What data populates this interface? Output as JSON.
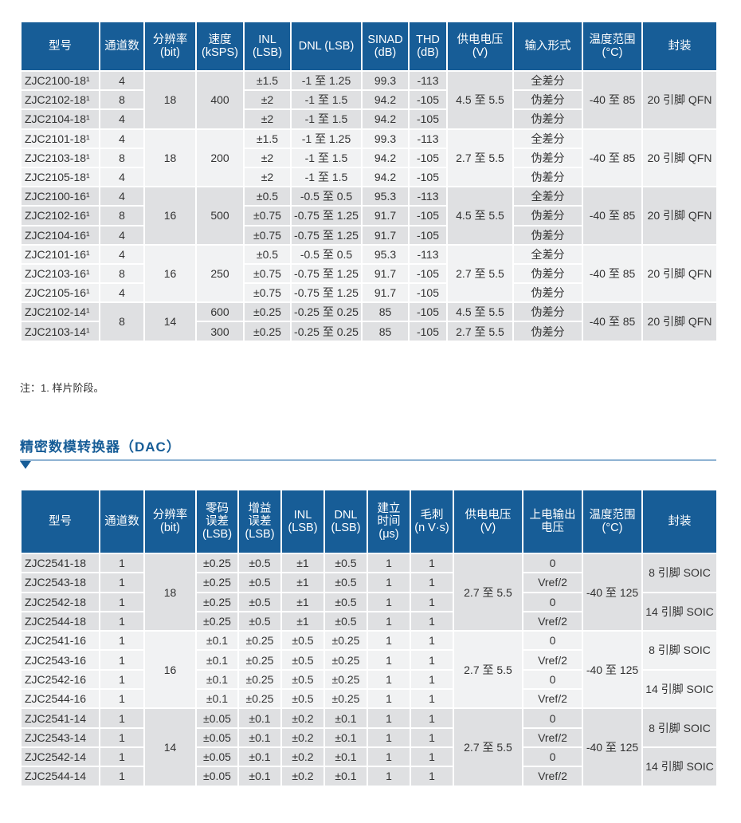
{
  "adc_table": {
    "headers": [
      "型号",
      "通道数",
      "分辨率\n(bit)",
      "速度\n(kSPS)",
      "INL\n(LSB)",
      "DNL (LSB)",
      "SINAD\n(dB)",
      "THD\n(dB)",
      "供电电压\n(V)",
      "输入形式",
      "温度范围\n(°C)",
      "封装"
    ],
    "groups": [
      [
        [
          "ZJC2100-18¹",
          "4",
          "18",
          "400",
          "±1.5",
          "-1 至 1.25",
          "99.3",
          "-113",
          "4.5 至 5.5",
          "全差分",
          "-40 至 85",
          "20 引脚 QFN"
        ],
        [
          "ZJC2102-18¹",
          "8",
          null,
          null,
          "±2",
          "-1 至 1.5",
          "94.2",
          "-105",
          null,
          "伪差分",
          null,
          null
        ],
        [
          "ZJC2104-18¹",
          "4",
          null,
          null,
          "±2",
          "-1 至 1.5",
          "94.2",
          "-105",
          null,
          "伪差分",
          null,
          null
        ]
      ],
      [
        [
          "ZJC2101-18¹",
          "4",
          "18",
          "200",
          "±1.5",
          "-1 至 1.25",
          "99.3",
          "-113",
          "2.7 至 5.5",
          "全差分",
          "-40 至 85",
          "20 引脚 QFN"
        ],
        [
          "ZJC2103-18¹",
          "8",
          null,
          null,
          "±2",
          "-1 至 1.5",
          "94.2",
          "-105",
          null,
          "伪差分",
          null,
          null
        ],
        [
          "ZJC2105-18¹",
          "4",
          null,
          null,
          "±2",
          "-1 至 1.5",
          "94.2",
          "-105",
          null,
          "伪差分",
          null,
          null
        ]
      ],
      [
        [
          "ZJC2100-16¹",
          "4",
          "16",
          "500",
          "±0.5",
          "-0.5 至 0.5",
          "95.3",
          "-113",
          "4.5 至 5.5",
          "全差分",
          "-40 至 85",
          "20 引脚 QFN"
        ],
        [
          "ZJC2102-16¹",
          "8",
          null,
          null,
          "±0.75",
          "-0.75 至 1.25",
          "91.7",
          "-105",
          null,
          "伪差分",
          null,
          null
        ],
        [
          "ZJC2104-16¹",
          "4",
          null,
          null,
          "±0.75",
          "-0.75 至 1.25",
          "91.7",
          "-105",
          null,
          "伪差分",
          null,
          null
        ]
      ],
      [
        [
          "ZJC2101-16¹",
          "4",
          "16",
          "250",
          "±0.5",
          "-0.5 至 0.5",
          "95.3",
          "-113",
          "2.7 至 5.5",
          "全差分",
          "-40 至 85",
          "20 引脚 QFN"
        ],
        [
          "ZJC2103-16¹",
          "8",
          null,
          null,
          "±0.75",
          "-0.75 至 1.25",
          "91.7",
          "-105",
          null,
          "伪差分",
          null,
          null
        ],
        [
          "ZJC2105-16¹",
          "4",
          null,
          null,
          "±0.75",
          "-0.75 至 1.25",
          "91.7",
          "-105",
          null,
          "伪差分",
          null,
          null
        ]
      ],
      [
        [
          "ZJC2102-14¹",
          "8",
          "14",
          "600",
          "±0.25",
          "-0.25 至 0.25",
          "85",
          "-105",
          "4.5 至 5.5",
          "伪差分",
          "-40 至 85",
          "20 引脚 QFN"
        ],
        [
          "ZJC2103-14¹",
          null,
          null,
          "300",
          "±0.25",
          "-0.25 至 0.25",
          "85",
          "-105",
          "2.7 至 5.5",
          "伪差分",
          null,
          null
        ]
      ]
    ]
  },
  "note": "注：1. 样片阶段。",
  "section_title": "精密数模转换器（DAC）",
  "dac_table": {
    "headers": [
      "型号",
      "通道数",
      "分辨率\n(bit)",
      "零码\n误差\n(LSB)",
      "增益\n误差\n(LSB)",
      "INL\n(LSB)",
      "DNL\n(LSB)",
      "建立\n时间\n(μs)",
      "毛刺\n(n V·s)",
      "供电电压\n(V)",
      "上电输出\n电压",
      "温度范围\n(°C)",
      "封装"
    ],
    "groups": [
      [
        [
          "ZJC2541-18",
          "1",
          "18",
          "±0.25",
          "±0.5",
          "±1",
          "±0.5",
          "1",
          "1",
          "2.7 至 5.5",
          "0",
          "-40 至 125",
          "8 引脚 SOIC"
        ],
        [
          "ZJC2543-18",
          "1",
          null,
          "±0.25",
          "±0.5",
          "±1",
          "±0.5",
          "1",
          "1",
          null,
          "Vref/2",
          null,
          null
        ],
        [
          "ZJC2542-18",
          "1",
          null,
          "±0.25",
          "±0.5",
          "±1",
          "±0.5",
          "1",
          "1",
          null,
          "0",
          null,
          "14 引脚 SOIC"
        ],
        [
          "ZJC2544-18",
          "1",
          null,
          "±0.25",
          "±0.5",
          "±1",
          "±0.5",
          "1",
          "1",
          null,
          "Vref/2",
          null,
          null
        ]
      ],
      [
        [
          "ZJC2541-16",
          "1",
          "16",
          "±0.1",
          "±0.25",
          "±0.5",
          "±0.25",
          "1",
          "1",
          "2.7 至 5.5",
          "0",
          "-40 至 125",
          "8 引脚 SOIC"
        ],
        [
          "ZJC2543-16",
          "1",
          null,
          "±0.1",
          "±0.25",
          "±0.5",
          "±0.25",
          "1",
          "1",
          null,
          "Vref/2",
          null,
          null
        ],
        [
          "ZJC2542-16",
          "1",
          null,
          "±0.1",
          "±0.25",
          "±0.5",
          "±0.25",
          "1",
          "1",
          null,
          "0",
          null,
          "14 引脚 SOIC"
        ],
        [
          "ZJC2544-16",
          "1",
          null,
          "±0.1",
          "±0.25",
          "±0.5",
          "±0.25",
          "1",
          "1",
          null,
          "Vref/2",
          null,
          null
        ]
      ],
      [
        [
          "ZJC2541-14",
          "1",
          "14",
          "±0.05",
          "±0.1",
          "±0.2",
          "±0.1",
          "1",
          "1",
          "2.7 至 5.5",
          "0",
          "-40 至 125",
          "8 引脚 SOIC"
        ],
        [
          "ZJC2543-14",
          "1",
          null,
          "±0.05",
          "±0.1",
          "±0.2",
          "±0.1",
          "1",
          "1",
          null,
          "Vref/2",
          null,
          null
        ],
        [
          "ZJC2542-14",
          "1",
          null,
          "±0.05",
          "±0.1",
          "±0.2",
          "±0.1",
          "1",
          "1",
          null,
          "0",
          null,
          "14 引脚 SOIC"
        ],
        [
          "ZJC2544-14",
          "1",
          null,
          "±0.05",
          "±0.1",
          "±0.2",
          "±0.1",
          "1",
          "1",
          null,
          "Vref/2",
          null,
          null
        ]
      ]
    ]
  },
  "colors": {
    "header_bg": "#175d97",
    "group_dark": "#dfe0e2",
    "group_light": "#f1f2f3",
    "title": "#175d97"
  }
}
